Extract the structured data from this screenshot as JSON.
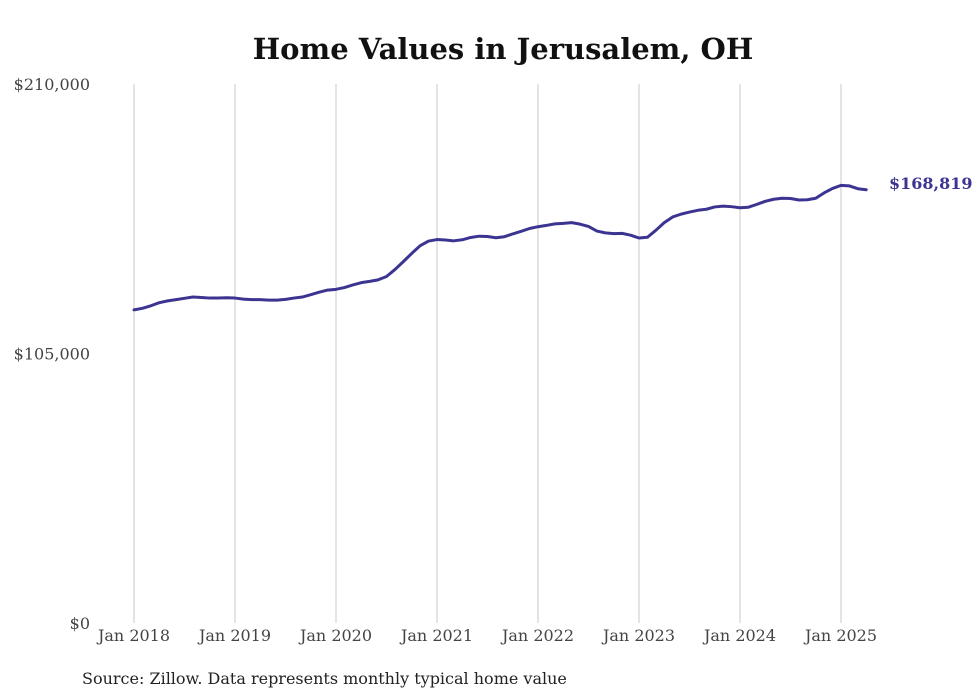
{
  "chart_data": {
    "type": "line",
    "title": "Home Values in Jerusalem, OH",
    "xlabel": "",
    "ylabel": "",
    "source": "Source: Zillow. Data represents monthly typical home value",
    "line_color": "#3b3591",
    "grid_color": "#c8c8c8",
    "grid": {
      "vertical": true,
      "horizontal": false
    },
    "x_range": [
      "2018-01",
      "2025-05"
    ],
    "ylim": [
      0,
      210000
    ],
    "y_ticks": [
      {
        "value": 0,
        "label": "$0"
      },
      {
        "value": 105000,
        "label": "$105,000"
      },
      {
        "value": 210000,
        "label": "$210,000"
      }
    ],
    "x_ticks": [
      {
        "value": "2018-01",
        "label": "Jan 2018"
      },
      {
        "value": "2019-01",
        "label": "Jan 2019"
      },
      {
        "value": "2020-01",
        "label": "Jan 2020"
      },
      {
        "value": "2021-01",
        "label": "Jan 2021"
      },
      {
        "value": "2022-01",
        "label": "Jan 2022"
      },
      {
        "value": "2023-01",
        "label": "Jan 2023"
      },
      {
        "value": "2024-01",
        "label": "Jan 2024"
      },
      {
        "value": "2025-01",
        "label": "Jan 2025"
      }
    ],
    "end_label": "$168,819",
    "series": [
      {
        "points": [
          [
            "2018-01",
            122000
          ],
          [
            "2018-02",
            122600
          ],
          [
            "2018-03",
            123600
          ],
          [
            "2018-04",
            124800
          ],
          [
            "2018-05",
            125500
          ],
          [
            "2018-06",
            126000
          ],
          [
            "2018-07",
            126500
          ],
          [
            "2018-08",
            127000
          ],
          [
            "2018-09",
            126800
          ],
          [
            "2018-10",
            126600
          ],
          [
            "2018-11",
            126600
          ],
          [
            "2018-12",
            126700
          ],
          [
            "2019-01",
            126600
          ],
          [
            "2019-02",
            126200
          ],
          [
            "2019-03",
            126000
          ],
          [
            "2019-04",
            126000
          ],
          [
            "2019-05",
            125800
          ],
          [
            "2019-06",
            125800
          ],
          [
            "2019-07",
            126100
          ],
          [
            "2019-08",
            126600
          ],
          [
            "2019-09",
            127000
          ],
          [
            "2019-10",
            127900
          ],
          [
            "2019-11",
            128900
          ],
          [
            "2019-12",
            129700
          ],
          [
            "2020-01",
            130000
          ],
          [
            "2020-02",
            130700
          ],
          [
            "2020-03",
            131700
          ],
          [
            "2020-04",
            132600
          ],
          [
            "2020-05",
            133100
          ],
          [
            "2020-06",
            133700
          ],
          [
            "2020-07",
            135000
          ],
          [
            "2020-08",
            137700
          ],
          [
            "2020-09",
            140800
          ],
          [
            "2020-10",
            144000
          ],
          [
            "2020-11",
            147000
          ],
          [
            "2020-12",
            148800
          ],
          [
            "2021-01",
            149400
          ],
          [
            "2021-02",
            149200
          ],
          [
            "2021-03",
            148900
          ],
          [
            "2021-04",
            149300
          ],
          [
            "2021-05",
            150200
          ],
          [
            "2021-06",
            150700
          ],
          [
            "2021-07",
            150600
          ],
          [
            "2021-08",
            150100
          ],
          [
            "2021-09",
            150500
          ],
          [
            "2021-10",
            151600
          ],
          [
            "2021-11",
            152600
          ],
          [
            "2021-12",
            153700
          ],
          [
            "2022-01",
            154400
          ],
          [
            "2022-02",
            154900
          ],
          [
            "2022-03",
            155500
          ],
          [
            "2022-04",
            155700
          ],
          [
            "2022-05",
            156000
          ],
          [
            "2022-06",
            155400
          ],
          [
            "2022-07",
            154500
          ],
          [
            "2022-08",
            152700
          ],
          [
            "2022-09",
            152000
          ],
          [
            "2022-10",
            151700
          ],
          [
            "2022-11",
            151800
          ],
          [
            "2022-12",
            151100
          ],
          [
            "2023-01",
            150000
          ],
          [
            "2023-02",
            150300
          ],
          [
            "2023-03",
            153000
          ],
          [
            "2023-04",
            156000
          ],
          [
            "2023-05",
            158200
          ],
          [
            "2023-06",
            159300
          ],
          [
            "2023-07",
            160100
          ],
          [
            "2023-08",
            160800
          ],
          [
            "2023-09",
            161200
          ],
          [
            "2023-10",
            162100
          ],
          [
            "2023-11",
            162400
          ],
          [
            "2023-12",
            162200
          ],
          [
            "2024-01",
            161800
          ],
          [
            "2024-02",
            162000
          ],
          [
            "2024-03",
            163100
          ],
          [
            "2024-04",
            164300
          ],
          [
            "2024-05",
            165100
          ],
          [
            "2024-06",
            165500
          ],
          [
            "2024-07",
            165400
          ],
          [
            "2024-08",
            164800
          ],
          [
            "2024-09",
            164900
          ],
          [
            "2024-10",
            165500
          ],
          [
            "2024-11",
            167600
          ],
          [
            "2024-12",
            169300
          ],
          [
            "2025-01",
            170500
          ],
          [
            "2025-02",
            170300
          ],
          [
            "2025-03",
            169200
          ],
          [
            "2025-04",
            168819
          ]
        ]
      }
    ]
  }
}
